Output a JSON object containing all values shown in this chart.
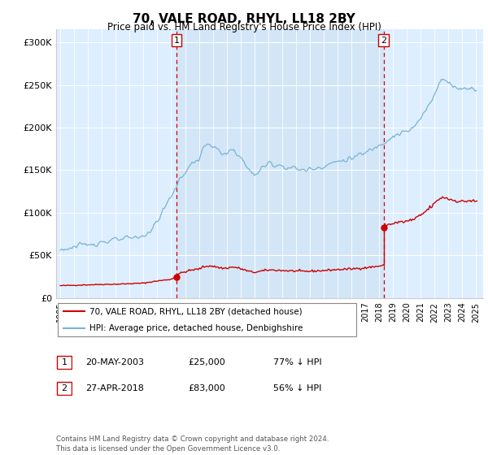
{
  "title": "70, VALE ROAD, RHYL, LL18 2BY",
  "subtitle": "Price paid vs. HM Land Registry's House Price Index (HPI)",
  "ylabel_ticks": [
    "£0",
    "£50K",
    "£100K",
    "£150K",
    "£200K",
    "£250K",
    "£300K"
  ],
  "ytick_values": [
    0,
    50000,
    100000,
    150000,
    200000,
    250000,
    300000
  ],
  "ylim": [
    0,
    315000
  ],
  "xlim_start": 1994.7,
  "xlim_end": 2025.5,
  "bg_color": "#ddeeff",
  "hpi_color": "#7ab3d4",
  "price_color": "#cc0000",
  "vline_color": "#cc0000",
  "marker1_x": 2003.38,
  "marker1_y": 25000,
  "marker2_x": 2018.33,
  "marker2_y": 83000,
  "shade_color": "#c8dff0",
  "legend_label_price": "70, VALE ROAD, RHYL, LL18 2BY (detached house)",
  "legend_label_hpi": "HPI: Average price, detached house, Denbighshire",
  "table_rows": [
    {
      "num": "1",
      "date": "20-MAY-2003",
      "price": "£25,000",
      "pct": "77% ↓ HPI"
    },
    {
      "num": "2",
      "date": "27-APR-2018",
      "price": "£83,000",
      "pct": "56% ↓ HPI"
    }
  ],
  "footer": "Contains HM Land Registry data © Crown copyright and database right 2024.\nThis data is licensed under the Open Government Licence v3.0.",
  "xtick_years": [
    1995,
    1996,
    1997,
    1998,
    1999,
    2000,
    2001,
    2002,
    2003,
    2004,
    2005,
    2006,
    2007,
    2008,
    2009,
    2010,
    2011,
    2012,
    2013,
    2014,
    2015,
    2016,
    2017,
    2018,
    2019,
    2020,
    2021,
    2022,
    2023,
    2024,
    2025
  ]
}
